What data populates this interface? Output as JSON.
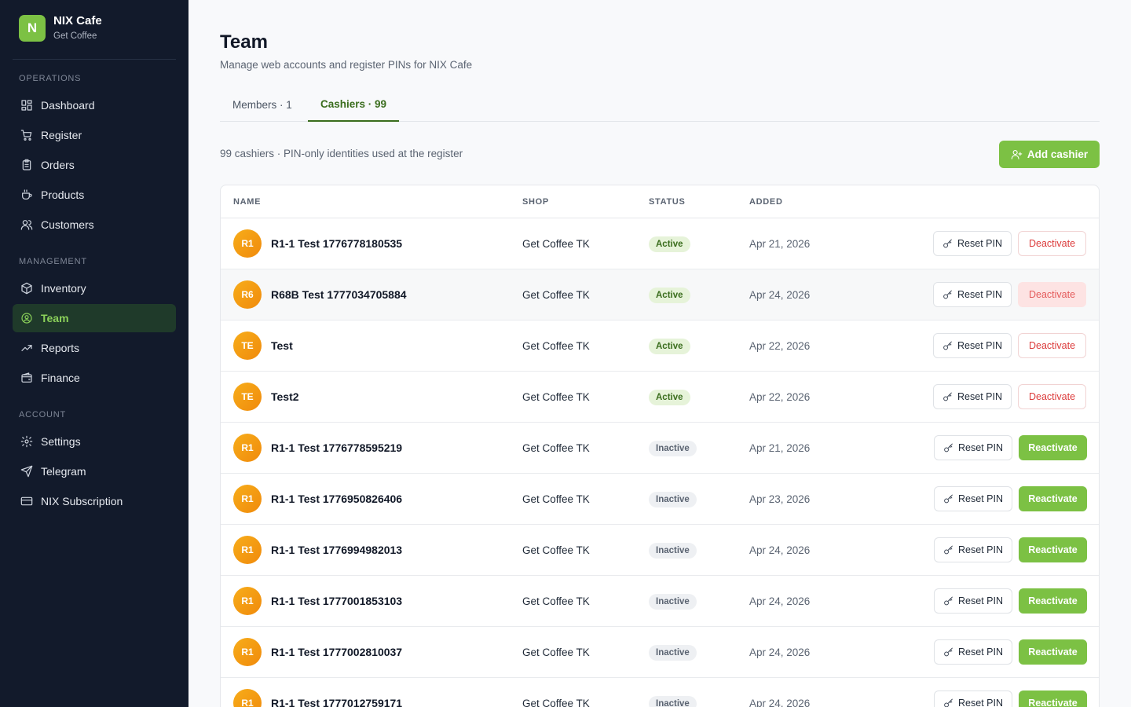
{
  "brand": {
    "logo_letter": "N",
    "name": "NIX Cafe",
    "subtitle": "Get Coffee"
  },
  "sidebar": {
    "sections": [
      {
        "heading": "OPERATIONS",
        "items": [
          {
            "label": "Dashboard",
            "icon": "dashboard-icon"
          },
          {
            "label": "Register",
            "icon": "cart-icon"
          },
          {
            "label": "Orders",
            "icon": "clipboard-icon"
          },
          {
            "label": "Products",
            "icon": "coffee-cup-icon"
          },
          {
            "label": "Customers",
            "icon": "users-icon"
          }
        ]
      },
      {
        "heading": "MANAGEMENT",
        "items": [
          {
            "label": "Inventory",
            "icon": "box-icon"
          },
          {
            "label": "Team",
            "icon": "user-circle-icon",
            "active": true
          },
          {
            "label": "Reports",
            "icon": "trending-up-icon"
          },
          {
            "label": "Finance",
            "icon": "wallet-icon"
          }
        ]
      },
      {
        "heading": "ACCOUNT",
        "items": [
          {
            "label": "Settings",
            "icon": "gear-icon"
          },
          {
            "label": "Telegram",
            "icon": "send-icon"
          },
          {
            "label": "NIX Subscription",
            "icon": "credit-card-icon"
          }
        ]
      }
    ]
  },
  "page": {
    "title": "Team",
    "subtitle": "Manage web accounts and register PINs for NIX Cafe",
    "tabs": [
      {
        "label": "Members · 1",
        "active": false
      },
      {
        "label": "Cashiers · 99",
        "active": true
      }
    ],
    "summary": "99 cashiers · PIN-only identities used at the register",
    "add_button_label": "Add cashier"
  },
  "table": {
    "columns": [
      "NAME",
      "SHOP",
      "STATUS",
      "ADDED"
    ],
    "reset_label": "Reset PIN",
    "deactivate_label": "Deactivate",
    "reactivate_label": "Reactivate",
    "rows": [
      {
        "initials": "R1",
        "name": "R1-1 Test 1776778180535",
        "shop": "Get Coffee TK",
        "status": "Active",
        "added": "Apr 21, 2026"
      },
      {
        "initials": "R6",
        "name": "R68B Test 1777034705884",
        "shop": "Get Coffee TK",
        "status": "Active",
        "added": "Apr 24, 2026",
        "hover": true
      },
      {
        "initials": "TE",
        "name": "Test",
        "shop": "Get Coffee TK",
        "status": "Active",
        "added": "Apr 22, 2026"
      },
      {
        "initials": "TE",
        "name": "Test2",
        "shop": "Get Coffee TK",
        "status": "Active",
        "added": "Apr 22, 2026"
      },
      {
        "initials": "R1",
        "name": "R1-1 Test 1776778595219",
        "shop": "Get Coffee TK",
        "status": "Inactive",
        "added": "Apr 21, 2026"
      },
      {
        "initials": "R1",
        "name": "R1-1 Test 1776950826406",
        "shop": "Get Coffee TK",
        "status": "Inactive",
        "added": "Apr 23, 2026"
      },
      {
        "initials": "R1",
        "name": "R1-1 Test 1776994982013",
        "shop": "Get Coffee TK",
        "status": "Inactive",
        "added": "Apr 24, 2026"
      },
      {
        "initials": "R1",
        "name": "R1-1 Test 1777001853103",
        "shop": "Get Coffee TK",
        "status": "Inactive",
        "added": "Apr 24, 2026"
      },
      {
        "initials": "R1",
        "name": "R1-1 Test 1777002810037",
        "shop": "Get Coffee TK",
        "status": "Inactive",
        "added": "Apr 24, 2026"
      },
      {
        "initials": "R1",
        "name": "R1-1 Test 1777012759171",
        "shop": "Get Coffee TK",
        "status": "Inactive",
        "added": "Apr 24, 2026"
      }
    ]
  },
  "colors": {
    "accent": "#7cc144",
    "sidebar_bg": "#121a2b",
    "danger": "#dc3b3b"
  }
}
